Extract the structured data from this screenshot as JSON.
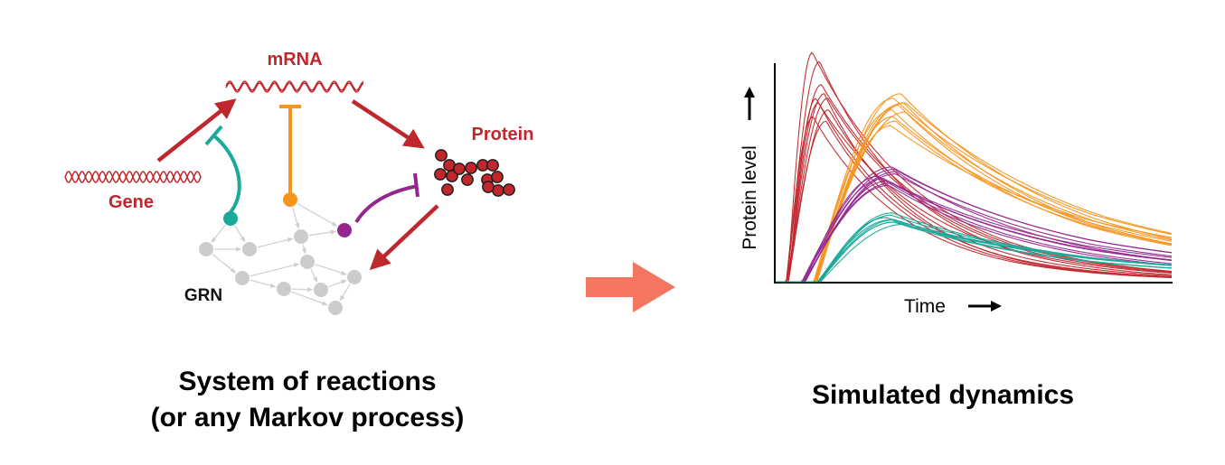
{
  "left_panel": {
    "gene_label": "Gene",
    "mrna_label": "mRNA",
    "protein_label": "Protein",
    "grn_label": "GRN",
    "caption_line1": "System of reactions",
    "caption_line2": "(or any Markov process)"
  },
  "right_panel": {
    "caption": "Simulated dynamics"
  },
  "colors": {
    "dark_red": "#c0272d",
    "teal": "#1aa99a",
    "orange": "#f7941d",
    "purple": "#93278f",
    "grey": "#cccccc",
    "salmon_arrow": "#f47560"
  },
  "chart_data": {
    "type": "line",
    "xlabel": "Time",
    "ylabel": "Protein level",
    "grid": false,
    "legend": "none",
    "series": [
      {
        "color": "#c0272d",
        "peak_time": 0.11,
        "peak_level": [
          0.72,
          0.78,
          0.82,
          0.96,
          0.86,
          0.8,
          0.75,
          0.7,
          0.8,
          1.0
        ],
        "onset": 0.03,
        "decay": 0.28
      },
      {
        "color": "#f7941d",
        "peak_time": 0.31,
        "peak_level": [
          0.72,
          0.78,
          0.82,
          0.78,
          0.75,
          0.7,
          0.68,
          0.8,
          0.74,
          0.77
        ],
        "onset": 0.1,
        "decay": 0.55
      },
      {
        "color": "#93278f",
        "peak_time": 0.28,
        "peak_level": [
          0.44,
          0.47,
          0.5,
          0.46,
          0.43,
          0.48,
          0.45,
          0.49,
          0.42
        ],
        "onset": 0.07,
        "decay": 0.5
      },
      {
        "color": "#1aa99a",
        "peak_time": 0.3,
        "peak_level": [
          0.26,
          0.28,
          0.29,
          0.27,
          0.25,
          0.28,
          0.3,
          0.26,
          0.27
        ],
        "onset": 0.11,
        "decay": 0.55
      }
    ]
  }
}
